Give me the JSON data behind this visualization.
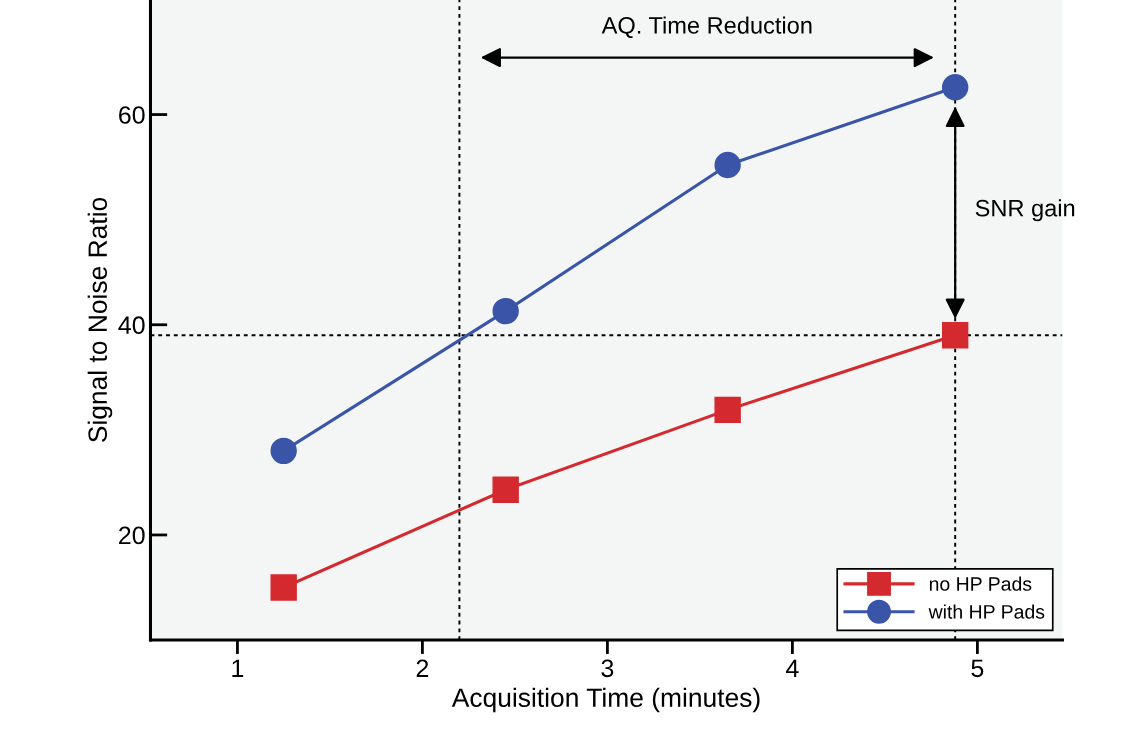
{
  "chart_data": {
    "type": "line",
    "xlabel": "Acquisition Time (minutes)",
    "ylabel": "Signal to Noise Ratio",
    "xlim": [
      0.53,
      5.46
    ],
    "xticks": [
      1,
      2,
      3,
      4,
      5
    ],
    "ylim": [
      10,
      70.9
    ],
    "yticks": [
      20,
      40,
      60
    ],
    "x": [
      1.25,
      2.45,
      3.65,
      4.88
    ],
    "series": [
      {
        "name": "no HP Pads",
        "color": "#d42a2f",
        "marker": "square",
        "values": [
          15,
          24.3,
          31.9,
          39
        ]
      },
      {
        "name": "with HP Pads",
        "color": "#3a54a8",
        "marker": "circle",
        "values": [
          28,
          41.3,
          55.2,
          62.6
        ]
      }
    ],
    "ref_lines": [
      {
        "axis": "x",
        "value": 2.2,
        "line_style": "dotted",
        "color": "#000000"
      },
      {
        "axis": "x",
        "value": 4.88,
        "line_style": "dotted",
        "color": "#000000"
      },
      {
        "axis": "y",
        "value": 39,
        "line_style": "dotted",
        "color": "#000000"
      }
    ],
    "annotations": [
      "AQ. Time Reduction",
      {
        "text": "SNR gain",
        "x": 4.88,
        "y": 50.9
      }
    ],
    "grid": false,
    "legend": "bottom right"
  }
}
